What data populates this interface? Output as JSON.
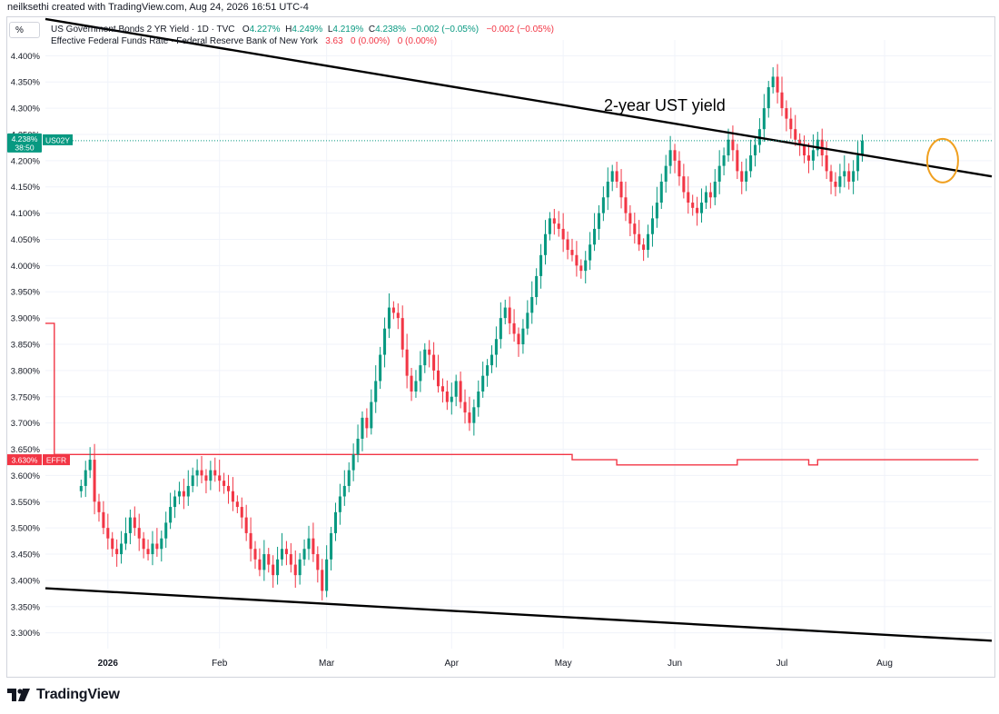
{
  "header": {
    "caption": "neilksethi created with TradingView.com, Aug 24, 2026 16:51 UTC-4",
    "percent_button": "%"
  },
  "legend": {
    "series1": {
      "name": "US Government Bonds 2 YR Yield · 1D · TVC",
      "open_label": "O",
      "open": "4.227%",
      "high_label": "H",
      "high": "4.249%",
      "low_label": "L",
      "low": "4.219%",
      "close_label": "C",
      "close": "4.238%",
      "change": "−0.002 (−0.05%)",
      "change2": "−0.002 (−0.05%)"
    },
    "series2": {
      "name": "Effective Federal Funds Rate · Federal Reserve Bank of New York",
      "value": "3.63",
      "chg1": "0 (0.00%)",
      "chg2": "0 (0.00%)"
    }
  },
  "annotation": "2-year UST yield",
  "price_tags": {
    "us02y_value": "4.238%",
    "us02y_symbol": "US02Y",
    "us02y_countdown": "38:50",
    "effr_value": "3.630%",
    "effr_symbol": "EFFR"
  },
  "footer": {
    "brand": "TradingView"
  },
  "colors": {
    "up": "#089981",
    "down": "#f23645",
    "effr": "#f23645",
    "trendline": "#000000",
    "highlight_circle": "#f0a020",
    "grid": "#f0f3fa"
  },
  "chart_data": {
    "type": "candlestick",
    "y_axis": {
      "ylim": [
        3.27,
        4.43
      ],
      "tick_labels": [
        "4.400%",
        "4.350%",
        "4.300%",
        "4.250%",
        "4.200%",
        "4.150%",
        "4.100%",
        "4.050%",
        "4.000%",
        "3.950%",
        "3.900%",
        "3.850%",
        "3.800%",
        "3.750%",
        "3.700%",
        "3.650%",
        "3.600%",
        "3.550%",
        "3.500%",
        "3.450%",
        "3.400%",
        "3.350%",
        "3.300%"
      ],
      "tick_values": [
        4.4,
        4.35,
        4.3,
        4.25,
        4.2,
        4.15,
        4.1,
        4.05,
        4.0,
        3.95,
        3.9,
        3.85,
        3.8,
        3.75,
        3.7,
        3.65,
        3.6,
        3.55,
        3.5,
        3.45,
        3.4,
        3.35,
        3.3
      ]
    },
    "x_axis": {
      "ticks": [
        {
          "label": "2026",
          "day": 6
        },
        {
          "label": "Feb",
          "day": 31
        },
        {
          "label": "Mar",
          "day": 55
        },
        {
          "label": "Apr",
          "day": 83
        },
        {
          "label": "May",
          "day": 108
        },
        {
          "label": "Jun",
          "day": 133
        },
        {
          "label": "Jul",
          "day": 157
        },
        {
          "label": "Aug",
          "day": 180
        }
      ],
      "range_days": [
        -8,
        204
      ]
    },
    "us02y_closes": [
      3.58,
      3.61,
      3.63,
      3.55,
      3.53,
      3.5,
      3.48,
      3.46,
      3.45,
      3.47,
      3.49,
      3.52,
      3.5,
      3.48,
      3.46,
      3.45,
      3.47,
      3.46,
      3.48,
      3.51,
      3.54,
      3.56,
      3.57,
      3.56,
      3.58,
      3.6,
      3.61,
      3.6,
      3.59,
      3.61,
      3.6,
      3.59,
      3.58,
      3.57,
      3.55,
      3.54,
      3.52,
      3.49,
      3.46,
      3.44,
      3.42,
      3.45,
      3.43,
      3.41,
      3.44,
      3.46,
      3.45,
      3.43,
      3.41,
      3.44,
      3.46,
      3.48,
      3.45,
      3.42,
      3.38,
      3.44,
      3.49,
      3.53,
      3.56,
      3.58,
      3.61,
      3.64,
      3.67,
      3.71,
      3.69,
      3.74,
      3.78,
      3.83,
      3.88,
      3.92,
      3.91,
      3.9,
      3.84,
      3.79,
      3.76,
      3.78,
      3.81,
      3.84,
      3.83,
      3.8,
      3.77,
      3.76,
      3.74,
      3.75,
      3.78,
      3.74,
      3.72,
      3.7,
      3.73,
      3.76,
      3.79,
      3.81,
      3.83,
      3.86,
      3.9,
      3.92,
      3.89,
      3.87,
      3.85,
      3.88,
      3.91,
      3.94,
      3.98,
      4.02,
      4.06,
      4.09,
      4.08,
      4.07,
      4.05,
      4.03,
      4.02,
      4.0,
      3.99,
      4.01,
      4.04,
      4.07,
      4.1,
      4.13,
      4.16,
      4.18,
      4.16,
      4.13,
      4.1,
      4.08,
      4.06,
      4.04,
      4.03,
      4.06,
      4.09,
      4.12,
      4.16,
      4.19,
      4.22,
      4.2,
      4.17,
      4.14,
      4.12,
      4.11,
      4.1,
      4.12,
      4.14,
      4.13,
      4.16,
      4.19,
      4.21,
      4.24,
      4.22,
      4.18,
      4.16,
      4.18,
      4.21,
      4.23,
      4.26,
      4.3,
      4.34,
      4.36,
      4.33,
      4.3,
      4.28,
      4.26,
      4.24,
      4.23,
      4.21,
      4.2,
      4.22,
      4.24,
      4.21,
      4.18,
      4.16,
      4.15,
      4.17,
      4.18,
      4.16,
      4.18,
      4.21,
      4.238
    ],
    "effr_steps": [
      {
        "from_day": -8,
        "to_day": -6,
        "value": 3.89
      },
      {
        "from_day": -6,
        "to_day": -5,
        "value": 3.64
      },
      {
        "from_day": -5,
        "to_day": 110,
        "value": 3.64
      },
      {
        "from_day": 110,
        "to_day": 120,
        "value": 3.63
      },
      {
        "from_day": 120,
        "to_day": 147,
        "value": 3.62
      },
      {
        "from_day": 147,
        "to_day": 163,
        "value": 3.63
      },
      {
        "from_day": 163,
        "to_day": 165,
        "value": 3.62
      },
      {
        "from_day": 165,
        "to_day": 201,
        "value": 3.63
      }
    ],
    "trendlines": [
      {
        "from": [
          -8,
          4.47
        ],
        "to": [
          204,
          4.17
        ]
      },
      {
        "from": [
          -8,
          3.385
        ],
        "to": [
          204,
          3.285
        ]
      }
    ],
    "highlight": {
      "day": 193,
      "value": 4.2
    }
  }
}
